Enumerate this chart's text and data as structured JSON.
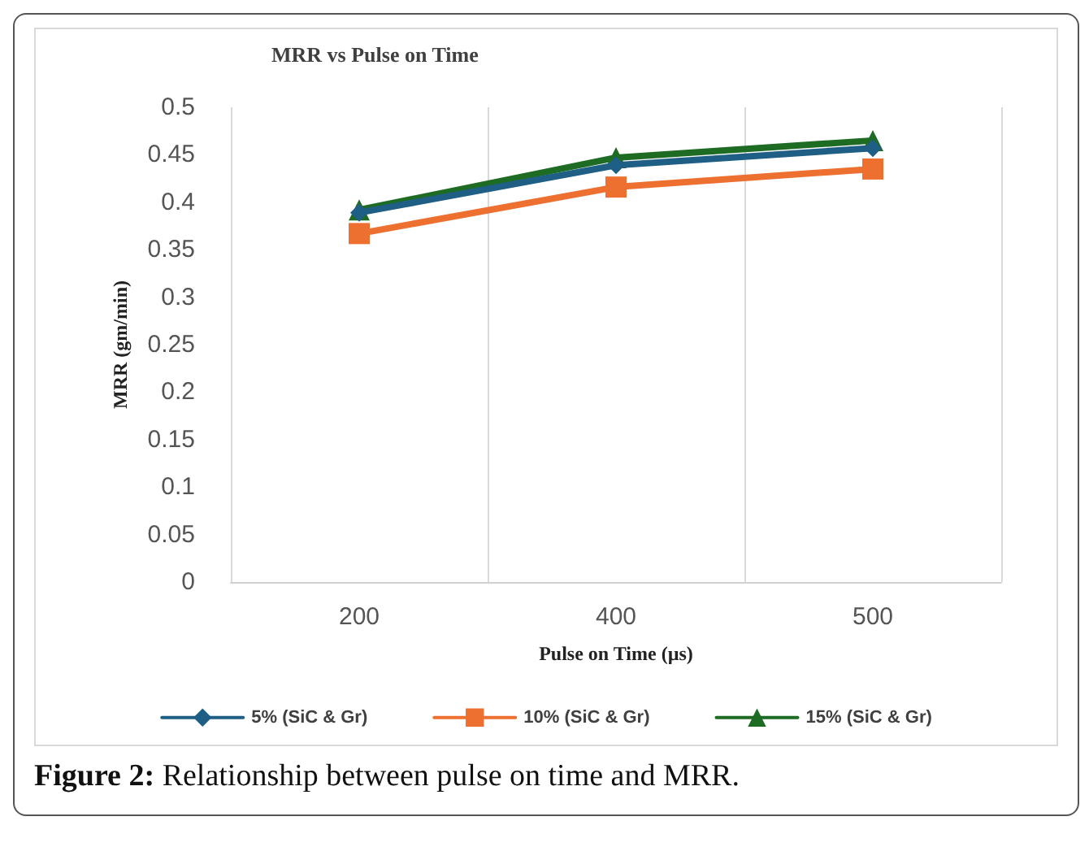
{
  "chart_data": {
    "type": "line",
    "title": "MRR vs Pulse on Time",
    "xlabel": "Pulse on Time (µs)",
    "ylabel": "MRR (gm/min)",
    "categories": [
      "200",
      "400",
      "500"
    ],
    "series": [
      {
        "name": "5% (SiC & Gr)",
        "color": "#1f5f86",
        "marker": "diamond",
        "values": [
          0.389,
          0.439,
          0.457
        ]
      },
      {
        "name": "10% (SiC & Gr)",
        "color": "#ed7031",
        "marker": "square",
        "values": [
          0.367,
          0.416,
          0.435
        ]
      },
      {
        "name": "15% (SiC & Gr)",
        "color": "#1e6b24",
        "marker": "triangle",
        "values": [
          0.392,
          0.447,
          0.465
        ]
      }
    ],
    "ylim": [
      0,
      0.5
    ],
    "yticks": [
      0,
      0.05,
      0.1,
      0.15,
      0.2,
      0.25,
      0.3,
      0.35,
      0.4,
      0.45,
      0.5
    ],
    "grid": "x",
    "legend": "bottom",
    "line_style": "solid",
    "annotations": [
      "Figure 2: Relationship between pulse on time and MRR."
    ]
  }
}
